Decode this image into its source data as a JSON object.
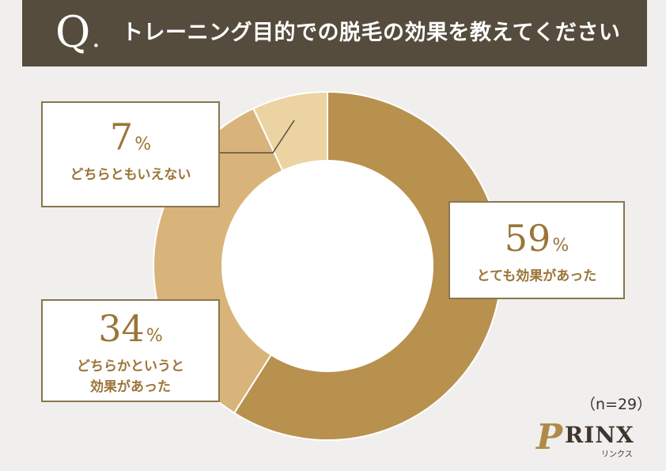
{
  "header": {
    "q_mark": "Q",
    "q_dot": ".",
    "question": "トレーニング目的での脱毛の効果を教えてください"
  },
  "chart_data": {
    "type": "pie",
    "donut": true,
    "slices": [
      {
        "label": "とても効果があった",
        "value": 59,
        "color": "#b8914f"
      },
      {
        "label": "どちらかというと効果があった",
        "value": 34,
        "color": "#d9b47a"
      },
      {
        "label": "どちらともいえない",
        "value": 7,
        "color": "#ecd3a2"
      }
    ],
    "unit": "%"
  },
  "labels": {
    "very": {
      "pct": "59",
      "sign": "%",
      "lines": [
        "とても効果があった"
      ]
    },
    "somewhat": {
      "pct": "34",
      "sign": "%",
      "lines": [
        "どちらかというと",
        "効果があった"
      ]
    },
    "neutral": {
      "pct": "7",
      "sign": "%",
      "lines": [
        "どちらともいえない"
      ]
    }
  },
  "sample": "（n=29）",
  "logo": {
    "mark": "P",
    "word": "RINX",
    "kana": "リンクス"
  },
  "colors": {
    "header_bg": "#564c3e",
    "accent_text": "#9b7538",
    "background": "#f0efee"
  }
}
